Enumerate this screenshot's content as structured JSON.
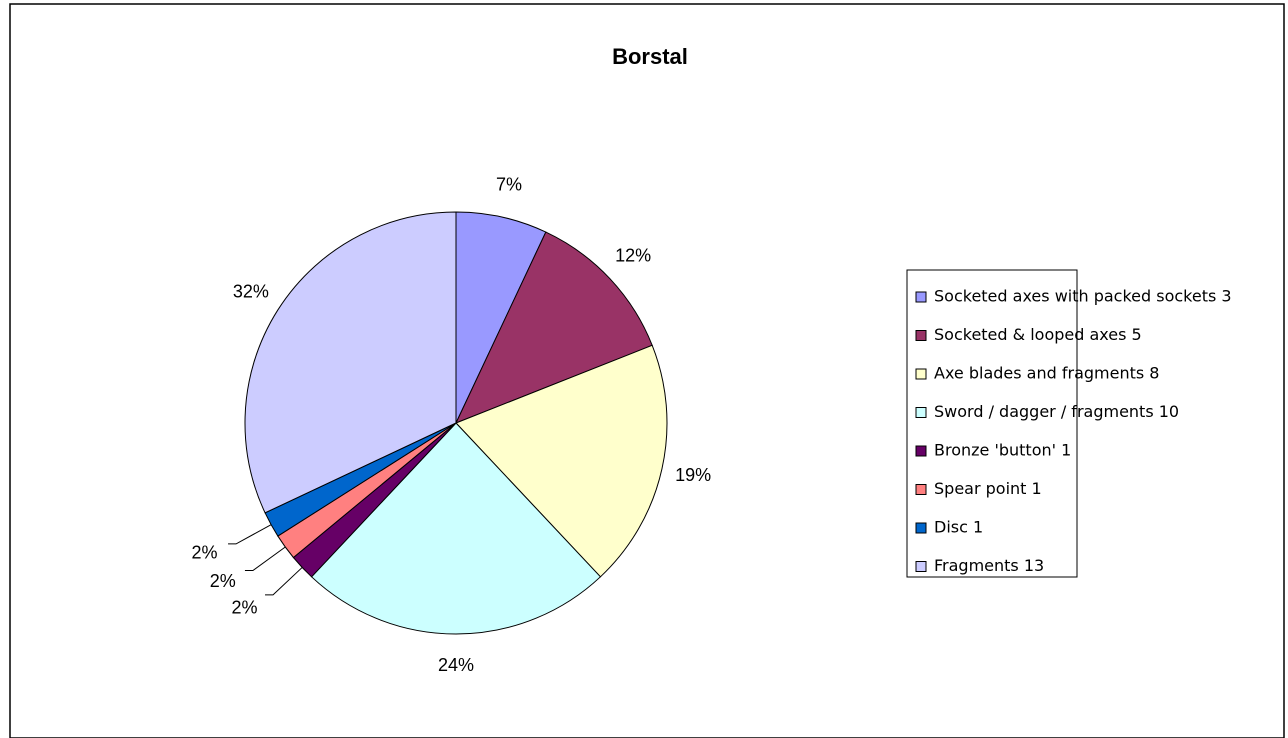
{
  "chart_data": {
    "type": "pie",
    "title": "Borstal",
    "categories": [
      "Socketed axes with packed sockets 3",
      "Socketed & looped axes 5",
      "Axe blades and fragments 8",
      "Sword / dagger / fragments 10",
      "Bronze 'button' 1",
      "Spear point 1",
      "Disc 1",
      "Fragments 13"
    ],
    "values": [
      7,
      12,
      19,
      24,
      2,
      2,
      2,
      32
    ],
    "value_labels": [
      "7%",
      "12%",
      "19%",
      "24%",
      "2%",
      "2%",
      "2%",
      "32%"
    ],
    "colors": [
      "#9999ff",
      "#993366",
      "#ffffcc",
      "#ccffff",
      "#660066",
      "#ff8080",
      "#0066cc",
      "#ccccff"
    ],
    "legend": "right"
  }
}
